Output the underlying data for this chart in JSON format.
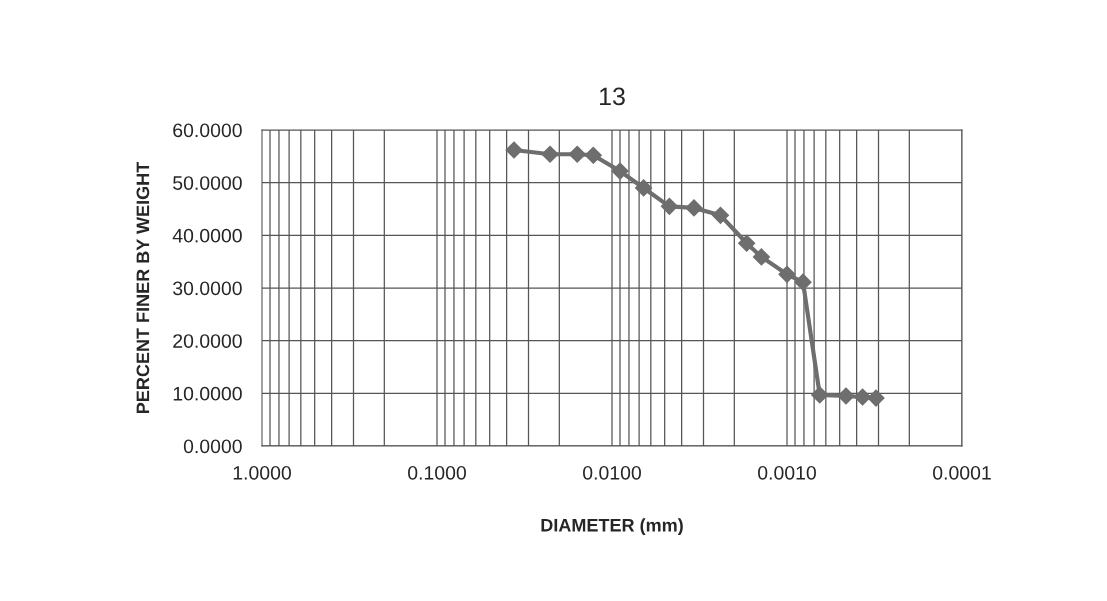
{
  "chart_data": {
    "type": "line",
    "title": "13",
    "xlabel": "DIAMETER (mm)",
    "ylabel": "PERCENT FINER BY WEIGHT",
    "log": "x",
    "grid": true,
    "marker": "diamond",
    "line_style": "solid",
    "xlim": [
      1,
      0.0001
    ],
    "xticks": [
      {
        "value": 1,
        "label": "1.0000"
      },
      {
        "value": 0.1,
        "label": "0.1000"
      },
      {
        "value": 0.01,
        "label": "0.0100"
      },
      {
        "value": 0.001,
        "label": "0.0010"
      },
      {
        "value": 0.0001,
        "label": "0.0001"
      }
    ],
    "ylim": [
      0,
      60
    ],
    "yticks": [
      {
        "value": 0,
        "label": "0.0000"
      },
      {
        "value": 10,
        "label": "10.0000"
      },
      {
        "value": 20,
        "label": "20.0000"
      },
      {
        "value": 30,
        "label": "30.0000"
      },
      {
        "value": 40,
        "label": "40.0000"
      },
      {
        "value": 50,
        "label": "50.0000"
      },
      {
        "value": 60,
        "label": "60.0000"
      }
    ],
    "series": [
      {
        "color": "#6e6e6e",
        "x": [
          0.0363,
          0.0226,
          0.0158,
          0.0128,
          0.009,
          0.0066,
          0.0047,
          0.0034,
          0.0024,
          0.0017,
          0.0014,
          0.001,
          0.00081,
          0.00065,
          0.00046,
          0.00037,
          0.00031
        ],
        "values": [
          56.2,
          55.4,
          55.4,
          55.2,
          52.2,
          49.0,
          45.5,
          45.2,
          43.8,
          38.5,
          35.9,
          32.6,
          31.1,
          9.7,
          9.5,
          9.3,
          9.1
        ]
      }
    ]
  }
}
